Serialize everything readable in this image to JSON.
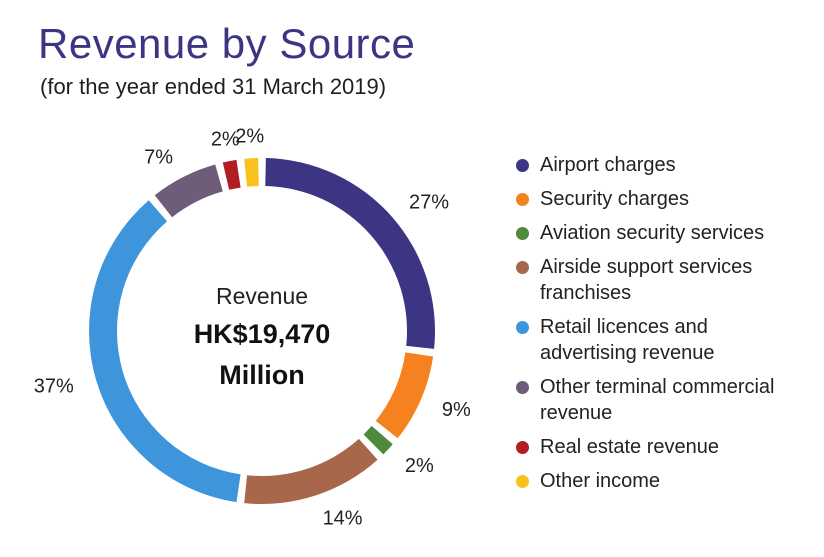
{
  "header": {
    "title": "Revenue by Source",
    "subtitle": "(for the year ended 31 March 2019)"
  },
  "center": {
    "label": "Revenue",
    "amount": "HK$19,470",
    "unit": "Million"
  },
  "chart_data": {
    "type": "pie",
    "donut": true,
    "legend_position": "right",
    "slices": [
      {
        "label": "Airport charges",
        "value": 27,
        "display": "27%",
        "color": "#3b3584"
      },
      {
        "label": "Security charges",
        "value": 9,
        "display": "9%",
        "color": "#f5821f"
      },
      {
        "label": "Aviation security services",
        "value": 2,
        "display": "2%",
        "color": "#4e8a3a"
      },
      {
        "label": "Airside support services franchises",
        "value": 14,
        "display": "14%",
        "color": "#a8674a"
      },
      {
        "label": "Retail licences and advertising revenue",
        "value": 37,
        "display": "37%",
        "color": "#3f95dc"
      },
      {
        "label": "Other terminal commercial revenue",
        "value": 7,
        "display": "7%",
        "color": "#6e5c78"
      },
      {
        "label": "Real estate revenue",
        "value": 2,
        "display": "2%",
        "color": "#b01e23"
      },
      {
        "label": "Other income",
        "value": 2,
        "display": "2%",
        "color": "#f8c11c"
      }
    ]
  }
}
